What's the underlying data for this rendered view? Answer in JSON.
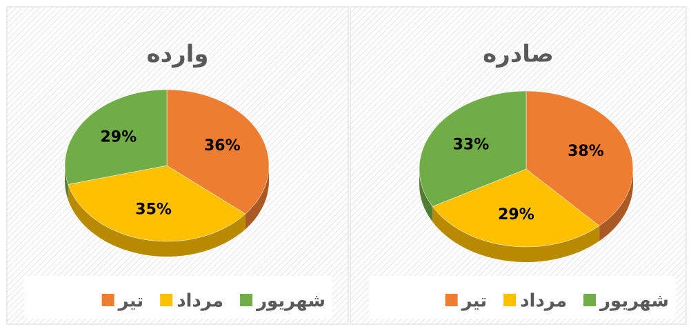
{
  "chart_data": [
    {
      "type": "pie",
      "title": "وارده",
      "categories": [
        "تیر",
        "مرداد",
        "شهریور"
      ],
      "values": [
        36,
        35,
        29
      ],
      "value_labels": [
        "36%",
        "35%",
        "29%"
      ],
      "colors": [
        "#ED7D31",
        "#FFC000",
        "#70AD47"
      ]
    },
    {
      "type": "pie",
      "title": "صادره",
      "categories": [
        "تیر",
        "مرداد",
        "شهریور"
      ],
      "values": [
        38,
        29,
        33
      ],
      "value_labels": [
        "38%",
        "29%",
        "33%"
      ],
      "colors": [
        "#ED7D31",
        "#FFC000",
        "#70AD47"
      ]
    }
  ]
}
